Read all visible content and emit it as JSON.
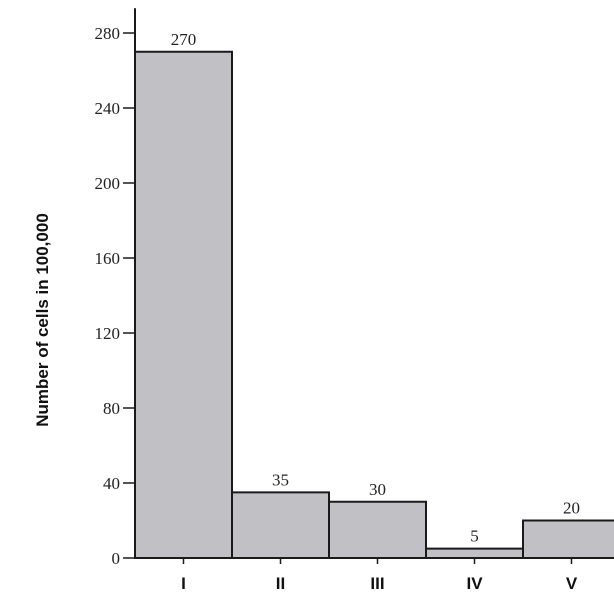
{
  "chart_data": {
    "type": "bar",
    "title": "",
    "xlabel": "",
    "ylabel": "Number of cells in 100,000",
    "categories": [
      "I",
      "II",
      "III",
      "IV",
      "V"
    ],
    "values": [
      270,
      35,
      30,
      5,
      20
    ],
    "data_labels": [
      "270",
      "35",
      "30",
      "5",
      "20"
    ],
    "yticks": [
      0,
      40,
      80,
      120,
      160,
      200,
      240,
      280
    ],
    "ylim": [
      0,
      290
    ],
    "grid": false,
    "legend": "none",
    "bar_color": "#c0c0c5",
    "bar_edge_color": "#1a1a1a"
  }
}
